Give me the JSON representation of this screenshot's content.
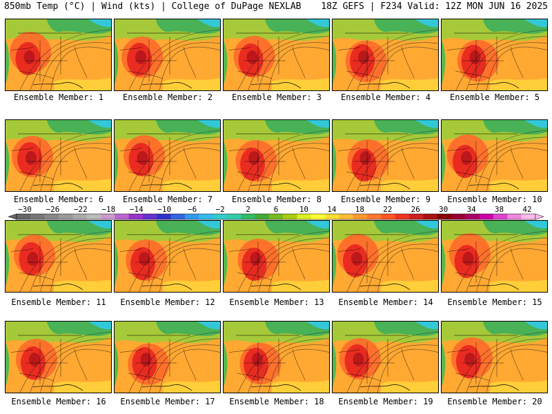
{
  "header": {
    "left": "850mb Temp (°C) | Wind (kts) | College of DuPage NEXLAB",
    "right": "18Z GEFS | F234 Valid: 12Z MON JUN 16 2025"
  },
  "panels": [
    {
      "label": "Ensemble Member: 1"
    },
    {
      "label": "Ensemble Member: 2"
    },
    {
      "label": "Ensemble Member: 3"
    },
    {
      "label": "Ensemble Member: 4"
    },
    {
      "label": "Ensemble Member: 5"
    },
    {
      "label": "Ensemble Member: 6"
    },
    {
      "label": "Ensemble Member: 7"
    },
    {
      "label": "Ensemble Member: 8"
    },
    {
      "label": "Ensemble Member: 9"
    },
    {
      "label": "Ensemble Member: 10"
    },
    {
      "label": "Ensemble Member: 11"
    },
    {
      "label": "Ensemble Member: 12"
    },
    {
      "label": "Ensemble Member: 13"
    },
    {
      "label": "Ensemble Member: 14"
    },
    {
      "label": "Ensemble Member: 15"
    },
    {
      "label": "Ensemble Member: 16"
    },
    {
      "label": "Ensemble Member: 17"
    },
    {
      "label": "Ensemble Member: 18"
    },
    {
      "label": "Ensemble Member: 19"
    },
    {
      "label": "Ensemble Member: 20"
    }
  ],
  "colorbar": {
    "ticks": [
      "−30",
      "−26",
      "−22",
      "−18",
      "−14",
      "−10",
      "−6",
      "−2",
      "2",
      "6",
      "10",
      "14",
      "18",
      "22",
      "26",
      "30",
      "34",
      "38",
      "42"
    ],
    "colors": [
      "#666666",
      "#777777",
      "#888888",
      "#999999",
      "#aaaaaa",
      "#bbbbbb",
      "#cc99cc",
      "#bb66cc",
      "#9933cc",
      "#6633cc",
      "#3333cc",
      "#3366dd",
      "#3399ee",
      "#33bbee",
      "#33cccc",
      "#33ccaa",
      "#33bb66",
      "#44aa33",
      "#77bb22",
      "#aacc11",
      "#ddee22",
      "#ffff33",
      "#ffdd33",
      "#ffbb33",
      "#ff9933",
      "#ff7733",
      "#ff5522",
      "#ee3322",
      "#cc2222",
      "#aa1111",
      "#880000",
      "#990033",
      "#aa0066",
      "#cc00aa",
      "#dd44cc",
      "#ee88dd",
      "#ffbbee"
    ]
  }
}
